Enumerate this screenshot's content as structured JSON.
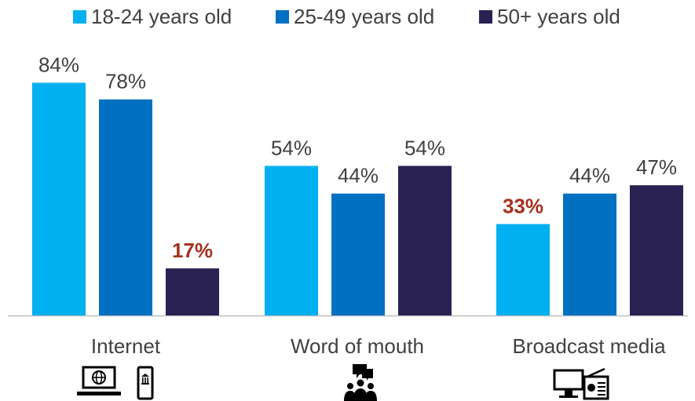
{
  "chart_data": {
    "type": "bar",
    "categories": [
      "Internet",
      "Word of mouth",
      "Broadcast media"
    ],
    "series": [
      {
        "name": "18-24 years old",
        "color": "#00B0F0",
        "values": [
          84,
          54,
          33
        ],
        "labels": [
          "84%",
          "54%",
          "33%"
        ]
      },
      {
        "name": "25-49 years old",
        "color": "#0070C0",
        "values": [
          78,
          44,
          44
        ],
        "labels": [
          "78%",
          "44%",
          "44%"
        ]
      },
      {
        "name": "50+ years old",
        "color": "#2A2252",
        "values": [
          17,
          54,
          47
        ],
        "labels": [
          "17%",
          "54%",
          "47%"
        ]
      }
    ],
    "highlighted_labels": [
      {
        "series": 2,
        "category": 0
      },
      {
        "series": 0,
        "category": 2
      }
    ],
    "highlight_color": "#A5301E",
    "label_color": "#404040",
    "ylim": [
      0,
      100
    ],
    "grid": false,
    "legend_position": "top",
    "category_icons": [
      [
        "laptop-globe-icon",
        "mobile-bank-icon"
      ],
      [
        "people-chat-icon"
      ],
      [
        "monitor-icon",
        "radio-icon"
      ]
    ]
  }
}
